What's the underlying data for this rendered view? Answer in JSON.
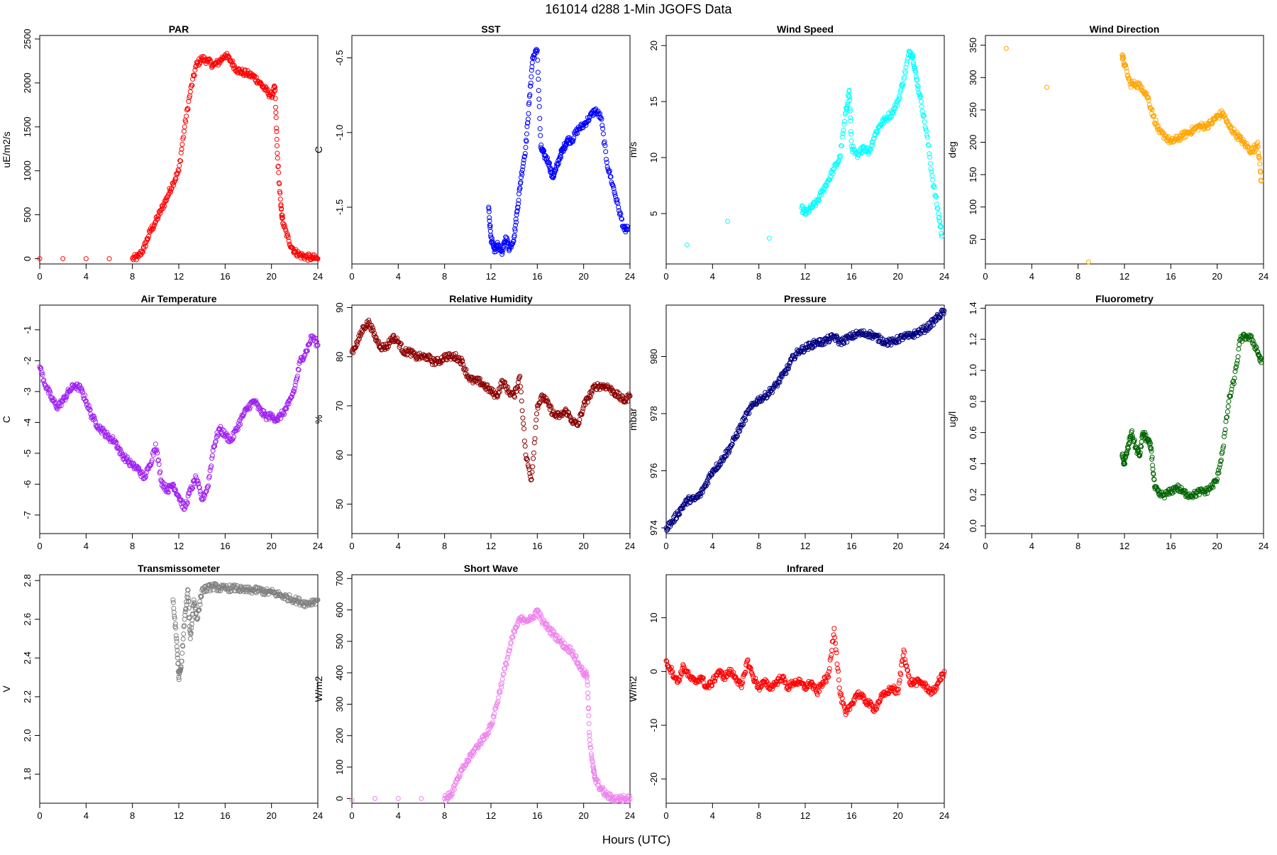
{
  "figure": {
    "title": "161014   d288   1-Min  JGOFS Data",
    "xlabel": "Hours (UTC)"
  },
  "chart_data": [
    {
      "type": "scatter",
      "title": "PAR",
      "ylabel": "uE/m2/s",
      "color": "#ff0000",
      "xlim": [
        0,
        24
      ],
      "ylim": [
        -60,
        2540
      ],
      "xticks": [
        "0",
        "4",
        "8",
        "12",
        "16",
        "20",
        "24"
      ],
      "yticks": [
        "0",
        "500",
        "1000",
        "1500",
        "2000",
        "2500"
      ],
      "x": [
        0,
        2,
        4,
        6,
        8,
        8.5,
        9,
        9.5,
        10,
        10.5,
        11,
        11.5,
        12,
        12.5,
        13,
        13.5,
        14,
        14.5,
        15,
        15.5,
        16,
        16.5,
        17,
        17.5,
        18,
        18.5,
        19,
        19.5,
        20,
        20.3,
        20.5,
        20.8,
        21,
        21.5,
        22,
        22.5,
        23,
        23.5,
        24
      ],
      "y": [
        0,
        0,
        0,
        0,
        0,
        20,
        120,
        300,
        420,
        560,
        700,
        860,
        1000,
        1500,
        1900,
        2200,
        2280,
        2250,
        2200,
        2240,
        2320,
        2250,
        2150,
        2120,
        2100,
        2070,
        2000,
        1920,
        1850,
        1950,
        1200,
        600,
        400,
        200,
        80,
        40,
        20,
        10,
        0
      ]
    },
    {
      "type": "scatter",
      "title": "SST",
      "ylabel": "C",
      "color": "#0000ff",
      "xlim": [
        0,
        24
      ],
      "ylim": [
        -1.88,
        -0.35
      ],
      "xticks": [
        "0",
        "4",
        "8",
        "12",
        "16",
        "20",
        "24"
      ],
      "yticks": [
        "-0.5",
        "-1.0",
        "-1.5"
      ],
      "x": [
        11.8,
        12,
        12.3,
        12.6,
        13,
        13.3,
        13.6,
        14,
        14.3,
        14.6,
        15,
        15.3,
        15.6,
        16,
        16.3,
        16.6,
        17,
        17.3,
        17.6,
        18,
        18.3,
        18.6,
        19,
        19.5,
        20,
        20.5,
        21,
        21.5,
        22,
        22.5,
        23,
        23.5,
        23.8
      ],
      "y": [
        -1.5,
        -1.7,
        -1.8,
        -1.75,
        -1.8,
        -1.7,
        -1.78,
        -1.7,
        -1.5,
        -1.3,
        -1.1,
        -0.8,
        -0.5,
        -0.45,
        -1.1,
        -1.15,
        -1.2,
        -1.3,
        -1.25,
        -1.15,
        -1.1,
        -1.05,
        -1.05,
        -0.98,
        -0.95,
        -0.9,
        -0.85,
        -0.9,
        -1.2,
        -1.35,
        -1.5,
        -1.65,
        -1.65
      ]
    },
    {
      "type": "scatter",
      "title": "Wind Speed",
      "ylabel": "m/s",
      "color": "#00ffff",
      "xlim": [
        0,
        24
      ],
      "ylim": [
        0.5,
        20.9
      ],
      "xticks": [
        "0",
        "4",
        "8",
        "12",
        "16",
        "20",
        "24"
      ],
      "yticks": [
        "5",
        "10",
        "15",
        "20"
      ],
      "x": [
        1.8,
        5.3,
        8.9,
        11.7,
        12,
        12.5,
        13,
        13.5,
        14,
        14.5,
        15,
        15.5,
        15.8,
        16,
        16.5,
        17,
        17.5,
        18,
        18.5,
        19,
        19.5,
        20,
        20.5,
        21,
        21.3,
        21.6,
        22,
        22.5,
        23,
        23.5,
        23.8
      ],
      "y": [
        2.2,
        4.3,
        2.8,
        5.5,
        5,
        5.5,
        6,
        7,
        8,
        9,
        10,
        14,
        16,
        11,
        10,
        11,
        10.5,
        12,
        13,
        13.5,
        14,
        15,
        17,
        19.5,
        19,
        17,
        15,
        12,
        8,
        5,
        3
      ]
    },
    {
      "type": "scatter",
      "title": "Wind Direction",
      "ylabel": "deg",
      "color": "#ffa500",
      "xlim": [
        0,
        24
      ],
      "ylim": [
        12,
        365
      ],
      "xticks": [
        "0",
        "4",
        "8",
        "12",
        "16",
        "20",
        "24"
      ],
      "yticks": [
        "50",
        "100",
        "150",
        "200",
        "250",
        "300",
        "350"
      ],
      "x": [
        1.8,
        5.3,
        8.9,
        11.8,
        12,
        12.5,
        13,
        13.5,
        14,
        14.5,
        15,
        15.5,
        16,
        16.5,
        17,
        17.5,
        18,
        18.5,
        19,
        19.5,
        20,
        20.5,
        21,
        21.5,
        22,
        22.5,
        23,
        23.5,
        23.8
      ],
      "y": [
        345,
        285,
        15,
        335,
        320,
        290,
        290,
        285,
        270,
        240,
        215,
        210,
        200,
        205,
        210,
        215,
        220,
        225,
        225,
        230,
        240,
        245,
        225,
        215,
        205,
        195,
        185,
        200,
        140
      ]
    },
    {
      "type": "scatter",
      "title": "Air Temperature",
      "ylabel": "C",
      "color": "#a020f0",
      "xlim": [
        0,
        24
      ],
      "ylim": [
        -7.6,
        -0.2
      ],
      "xticks": [
        "0",
        "4",
        "8",
        "12",
        "16",
        "20",
        "24"
      ],
      "yticks": [
        "-1",
        "-2",
        "-3",
        "-4",
        "-5",
        "-6",
        "-7"
      ],
      "x": [
        0,
        0.5,
        1,
        1.5,
        2,
        2.5,
        3,
        3.5,
        4,
        4.5,
        5,
        5.5,
        6,
        6.5,
        7,
        7.5,
        8,
        8.5,
        9,
        9.5,
        10,
        10.5,
        11,
        11.5,
        12,
        12.5,
        13,
        13.5,
        14,
        14.5,
        15,
        15.5,
        16,
        16.5,
        17,
        17.5,
        18,
        18.5,
        19,
        19.5,
        20,
        20.5,
        21,
        21.5,
        22,
        22.5,
        23,
        23.5,
        24
      ],
      "y": [
        -2.2,
        -2.8,
        -3.2,
        -3.5,
        -3.3,
        -3.0,
        -2.8,
        -2.9,
        -3.3,
        -3.8,
        -4.1,
        -4.3,
        -4.5,
        -4.6,
        -5.0,
        -5.2,
        -5.4,
        -5.5,
        -5.8,
        -5.4,
        -4.7,
        -5.9,
        -6.2,
        -6.0,
        -6.4,
        -6.8,
        -6.2,
        -5.8,
        -6.5,
        -6.1,
        -4.8,
        -4.2,
        -4.4,
        -4.6,
        -4.2,
        -3.8,
        -3.5,
        -3.3,
        -3.6,
        -3.8,
        -3.8,
        -3.9,
        -3.7,
        -3.4,
        -2.9,
        -2.0,
        -1.7,
        -1.2,
        -1.5
      ]
    },
    {
      "type": "scatter",
      "title": "Relative Humidity",
      "ylabel": "%",
      "color": "#8b0000",
      "xlim": [
        0,
        24
      ],
      "ylim": [
        44,
        90.5
      ],
      "xticks": [
        "0",
        "4",
        "8",
        "12",
        "16",
        "20",
        "24"
      ],
      "yticks": [
        "50",
        "60",
        "70",
        "80",
        "90"
      ],
      "x": [
        0,
        0.5,
        1,
        1.5,
        2,
        2.5,
        3,
        3.5,
        4,
        4.5,
        5,
        5.5,
        6,
        6.5,
        7,
        7.5,
        8,
        8.5,
        9,
        9.5,
        10,
        10.5,
        11,
        11.5,
        12,
        12.5,
        13,
        13.5,
        14,
        14.5,
        15,
        15.5,
        16,
        16.5,
        17,
        17.5,
        18,
        18.5,
        19,
        19.5,
        20,
        20.5,
        21,
        21.5,
        22,
        22.5,
        23,
        23.5,
        24
      ],
      "y": [
        81,
        83,
        86,
        87,
        84,
        82,
        82,
        84,
        83,
        81,
        81,
        80,
        80,
        80,
        79,
        79,
        80,
        80,
        80,
        79,
        76,
        75,
        75,
        74,
        73,
        72,
        75,
        73,
        72,
        76,
        60,
        55,
        70,
        72,
        70,
        68,
        68,
        69,
        67,
        66,
        70,
        72,
        74,
        74,
        74,
        73,
        72,
        71,
        72
      ]
    },
    {
      "type": "scatter",
      "title": "Pressure",
      "ylabel": "mbar",
      "color": "#000080",
      "xlim": [
        0,
        24
      ],
      "ylim": [
        973.8,
        981.8
      ],
      "xticks": [
        "0",
        "4",
        "8",
        "12",
        "16",
        "20",
        "24"
      ],
      "yticks": [
        "974",
        "976",
        "978",
        "980"
      ],
      "x": [
        0,
        0.5,
        1,
        1.5,
        2,
        2.5,
        3,
        3.5,
        4,
        4.5,
        5,
        5.5,
        6,
        6.5,
        7,
        7.5,
        8,
        8.5,
        9,
        9.5,
        10,
        10.5,
        11,
        11.5,
        12,
        12.5,
        13,
        13.5,
        14,
        14.5,
        15,
        15.5,
        16,
        16.5,
        17,
        17.5,
        18,
        18.5,
        19,
        19.5,
        20,
        20.5,
        21,
        21.5,
        22,
        22.5,
        23,
        23.5,
        24
      ],
      "y": [
        974,
        974.2,
        974.5,
        974.8,
        975,
        975,
        975.2,
        975.6,
        976,
        976.2,
        976.5,
        976.8,
        977.2,
        977.6,
        978,
        978.3,
        978.5,
        978.6,
        978.8,
        979,
        979.3,
        979.6,
        980,
        980.2,
        980.3,
        980.4,
        980.5,
        980.5,
        980.6,
        980.7,
        980.5,
        980.6,
        980.7,
        980.8,
        980.8,
        980.8,
        980.7,
        980.6,
        980.5,
        980.5,
        980.6,
        980.7,
        980.7,
        980.8,
        980.9,
        981.0,
        981.2,
        981.4,
        981.6
      ]
    },
    {
      "type": "scatter",
      "title": "Fluorometry",
      "ylabel": "ug/l",
      "color": "#006400",
      "xlim": [
        0,
        24
      ],
      "ylim": [
        -0.05,
        1.42
      ],
      "xticks": [
        "0",
        "4",
        "8",
        "12",
        "16",
        "20",
        "24"
      ],
      "yticks": [
        "0.0",
        "0.2",
        "0.4",
        "0.6",
        "0.8",
        "1.0",
        "1.2",
        "1.4"
      ],
      "x": [
        11.8,
        12,
        12.3,
        12.6,
        13,
        13.3,
        13.6,
        14,
        14.3,
        14.6,
        15,
        15.5,
        16,
        16.5,
        17,
        17.5,
        18,
        18.5,
        19,
        19.5,
        20,
        20.5,
        21,
        21.5,
        22,
        22.5,
        23,
        23.5,
        23.8
      ],
      "y": [
        0.45,
        0.4,
        0.5,
        0.6,
        0.5,
        0.45,
        0.6,
        0.55,
        0.5,
        0.25,
        0.2,
        0.2,
        0.22,
        0.25,
        0.22,
        0.2,
        0.2,
        0.22,
        0.22,
        0.25,
        0.3,
        0.5,
        0.8,
        0.95,
        1.2,
        1.22,
        1.2,
        1.12,
        1.05
      ]
    },
    {
      "type": "scatter",
      "title": "Transmissometer",
      "ylabel": "V",
      "color": "#808080",
      "xlim": [
        0,
        24
      ],
      "ylim": [
        1.65,
        2.83
      ],
      "xticks": [
        "0",
        "4",
        "8",
        "12",
        "16",
        "20",
        "24"
      ],
      "yticks": [
        "1.8",
        "2.0",
        "2.2",
        "2.4",
        "2.6",
        "2.8"
      ],
      "x": [
        11.5,
        11.8,
        12,
        12.2,
        12.5,
        12.8,
        13,
        13.3,
        13.6,
        14,
        14.5,
        15,
        15.5,
        16,
        16.5,
        17,
        17.5,
        18,
        18.5,
        19,
        19.5,
        20,
        20.5,
        21,
        21.5,
        22,
        22.5,
        23,
        23.5,
        24
      ],
      "y": [
        2.7,
        2.5,
        2.3,
        2.35,
        2.6,
        2.75,
        2.5,
        2.7,
        2.6,
        2.75,
        2.76,
        2.77,
        2.76,
        2.76,
        2.76,
        2.76,
        2.75,
        2.75,
        2.75,
        2.75,
        2.74,
        2.74,
        2.73,
        2.72,
        2.71,
        2.7,
        2.69,
        2.68,
        2.69,
        2.7
      ]
    },
    {
      "type": "scatter",
      "title": "Short Wave",
      "ylabel": "W/m2",
      "color": "#ee82ee",
      "xlim": [
        0,
        24
      ],
      "ylim": [
        -15,
        712
      ],
      "xticks": [
        "0",
        "4",
        "8",
        "12",
        "16",
        "20",
        "24"
      ],
      "yticks": [
        "0",
        "100",
        "200",
        "300",
        "400",
        "500",
        "600",
        "700"
      ],
      "x": [
        0,
        2,
        4,
        6,
        8,
        8.5,
        9,
        9.5,
        10,
        10.5,
        11,
        11.5,
        12,
        12.5,
        13,
        13.5,
        14,
        14.5,
        15,
        15.5,
        16,
        16.5,
        17,
        17.5,
        18,
        18.5,
        19,
        19.5,
        20,
        20.3,
        20.5,
        20.8,
        21,
        21.5,
        22,
        22.5,
        23,
        23.5,
        24
      ],
      "y": [
        -5,
        0,
        0,
        0,
        0,
        10,
        50,
        90,
        120,
        150,
        175,
        200,
        230,
        300,
        380,
        460,
        530,
        570,
        570,
        570,
        600,
        560,
        540,
        520,
        500,
        480,
        470,
        430,
        400,
        390,
        200,
        100,
        60,
        30,
        10,
        0,
        0,
        0,
        0
      ]
    },
    {
      "type": "scatter",
      "title": "Infrared",
      "ylabel": "W/m2",
      "color": "#ff0000",
      "xlim": [
        0,
        24
      ],
      "ylim": [
        -24.5,
        18
      ],
      "xticks": [
        "0",
        "4",
        "8",
        "12",
        "16",
        "20",
        "24"
      ],
      "yticks": [
        "10",
        "0",
        "-10",
        "-20"
      ],
      "x": [
        0,
        0.5,
        1,
        1.5,
        2,
        2.5,
        3,
        3.5,
        4,
        4.5,
        5,
        5.5,
        6,
        6.5,
        7,
        7.5,
        8,
        8.5,
        9,
        9.5,
        10,
        10.5,
        11,
        11.5,
        12,
        12.5,
        13,
        13.5,
        14,
        14.5,
        15,
        15.5,
        16,
        16.5,
        17,
        17.5,
        18,
        18.5,
        19,
        19.5,
        20,
        20.5,
        21,
        21.5,
        22,
        22.5,
        23,
        23.5,
        24
      ],
      "y": [
        2,
        0,
        -2,
        1,
        -1,
        -2,
        -1,
        -3,
        -2,
        0,
        -1,
        0,
        -1,
        -3,
        2,
        -1,
        -3,
        -2,
        -3,
        -2,
        -1,
        -3,
        -2,
        -2,
        -3,
        -2,
        -4,
        -2,
        -1,
        8,
        -4,
        -8,
        -6,
        -4,
        -5,
        -6,
        -7,
        -5,
        -4,
        -3,
        -4,
        4,
        -2,
        -2,
        -2,
        -3,
        -4,
        -2,
        0
      ]
    }
  ]
}
